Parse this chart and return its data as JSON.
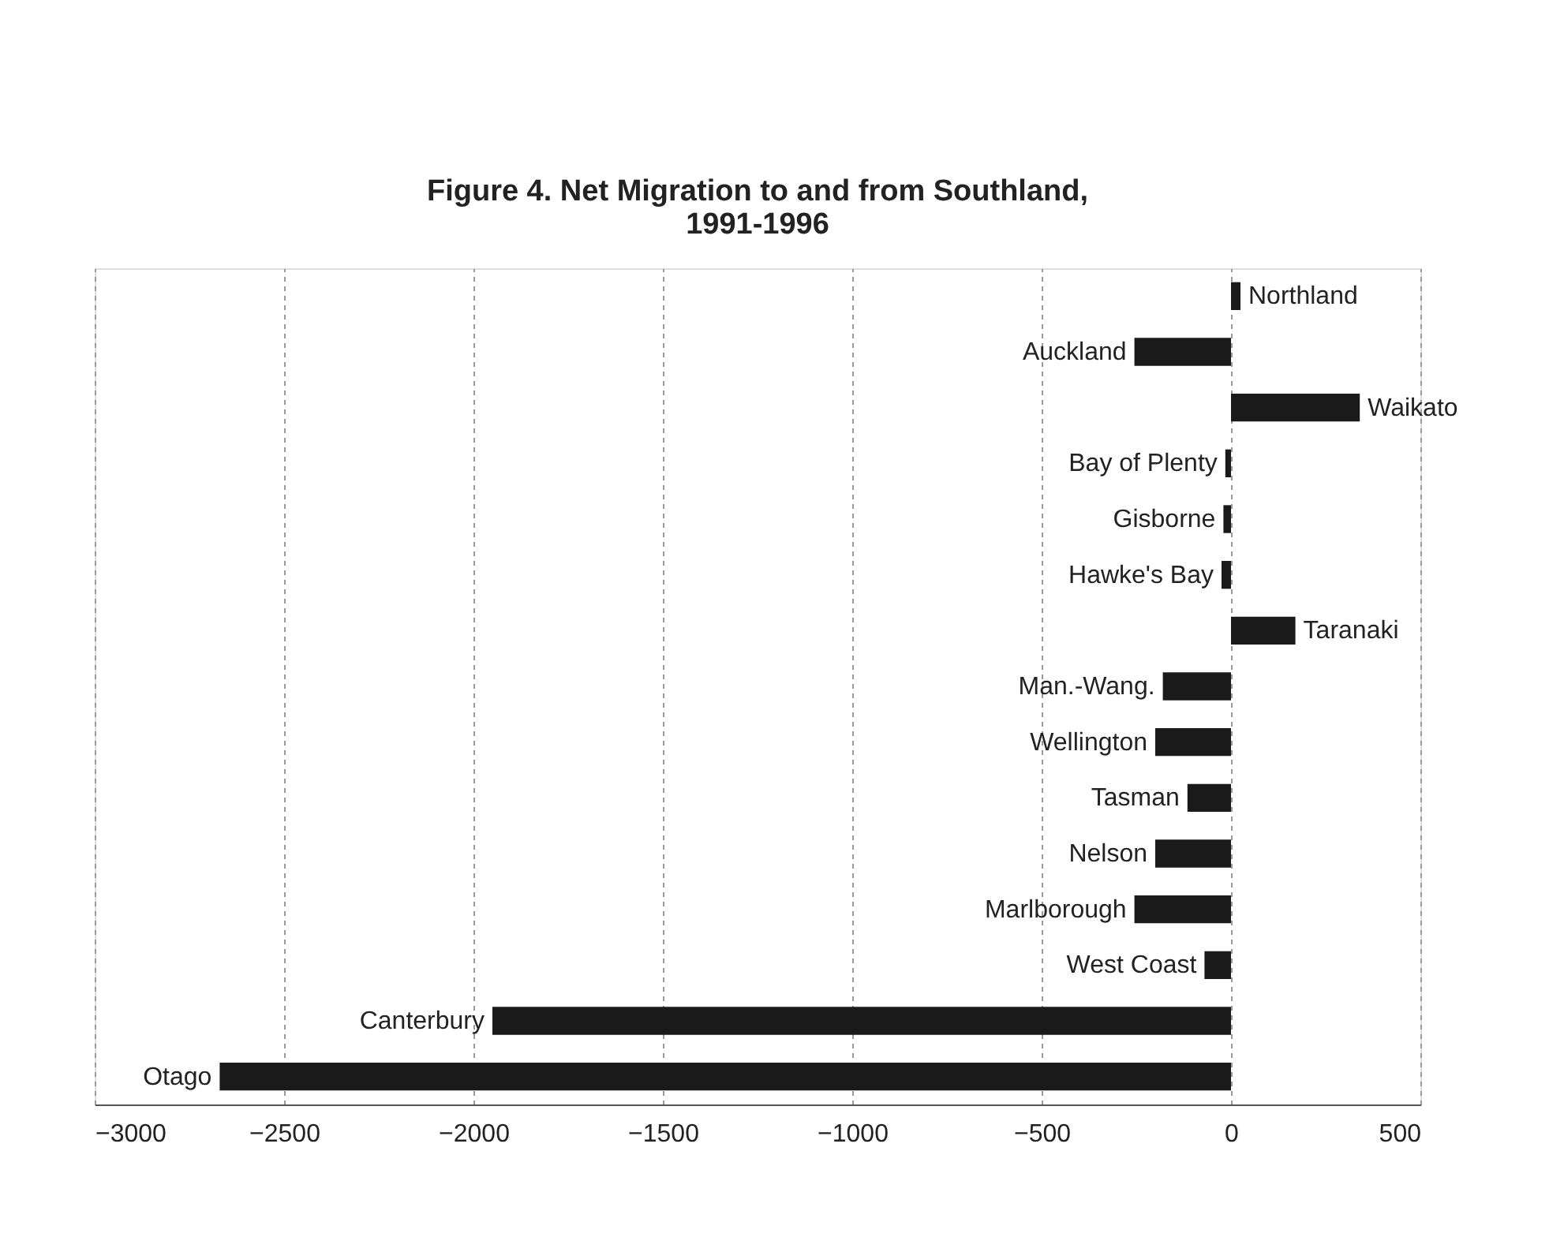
{
  "chart_data": {
    "type": "bar",
    "orientation": "horizontal",
    "title": "Figure 4. Net Migration to and from Southland, 1991-1996",
    "categories": [
      "Northland",
      "Auckland",
      "Waikato",
      "Bay of Plenty",
      "Gisborne",
      "Hawke's Bay",
      "Taranaki",
      "Man.-Wang.",
      "Wellington",
      "Tasman",
      "Nelson",
      "Marlborough",
      "West Coast",
      "Canterbury",
      "Otago"
    ],
    "values": [
      25,
      -255,
      340,
      -15,
      -20,
      -25,
      170,
      -180,
      -200,
      -115,
      -200,
      -255,
      -70,
      -1950,
      -2670
    ],
    "color": "#1a1a1a",
    "xlim": [
      -3000,
      500
    ],
    "xticks": [
      -3000,
      -2500,
      -2000,
      -1500,
      -1000,
      -500,
      0,
      500
    ],
    "grid": "x",
    "tick_labels": "x"
  }
}
